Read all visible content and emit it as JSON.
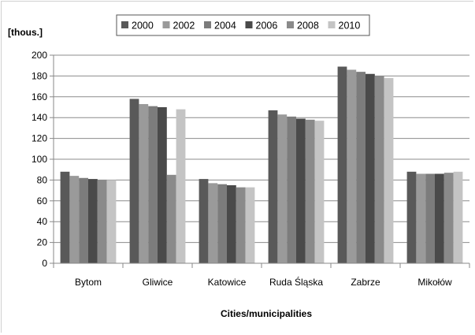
{
  "chart_data": {
    "type": "bar",
    "title": "",
    "ylabel": "[thous.]",
    "xlabel": "Cities/municipalities",
    "ylim": [
      0,
      200
    ],
    "yticks": [
      0,
      20,
      40,
      60,
      80,
      100,
      120,
      140,
      160,
      180,
      200
    ],
    "grid": true,
    "legend_position": "top",
    "categories": [
      "Bytom",
      "Gliwice",
      "Katowice",
      "Ruda Śląska",
      "Zabrze",
      "Mikołów"
    ],
    "series": [
      {
        "name": "2000",
        "color": "#595959",
        "values": [
          88,
          158,
          81,
          147,
          189,
          88
        ]
      },
      {
        "name": "2002",
        "color": "#9a9a9a",
        "values": [
          84,
          153,
          77,
          143,
          186,
          86
        ]
      },
      {
        "name": "2004",
        "color": "#7c7c7c",
        "values": [
          82,
          151,
          76,
          141,
          184,
          86
        ]
      },
      {
        "name": "2006",
        "color": "#4a4a4a",
        "values": [
          81,
          150,
          75,
          139,
          182,
          86
        ]
      },
      {
        "name": "2008",
        "color": "#8a8a8a",
        "values": [
          80,
          85,
          73,
          138,
          180,
          87
        ]
      },
      {
        "name": "2010",
        "color": "#c4c4c4",
        "values": [
          80,
          148,
          73,
          137,
          178,
          88
        ]
      }
    ]
  }
}
